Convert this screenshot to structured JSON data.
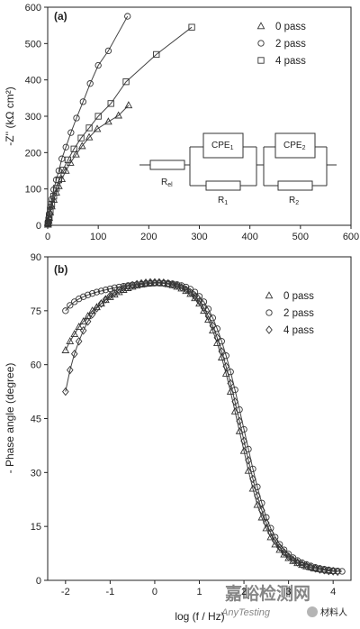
{
  "chart_data": [
    {
      "panel_label": "(a)",
      "type": "scatter",
      "xlabel": "",
      "ylabel": "-Z'' (kΩ cm²)",
      "xlim": [
        0,
        600
      ],
      "ylim": [
        0,
        600
      ],
      "x_ticks": [
        "0",
        "100",
        "200",
        "300",
        "400",
        "500",
        "600"
      ],
      "y_ticks": [
        "0",
        "100",
        "200",
        "300",
        "400",
        "500",
        "600"
      ],
      "legend_position": "top-right",
      "grid": false,
      "fitted_lines": true,
      "series": [
        {
          "name": "0 pass",
          "marker": "triangle",
          "points": [
            [
              0.5,
              2
            ],
            [
              1,
              5
            ],
            [
              2,
              12
            ],
            [
              3,
              20
            ],
            [
              5,
              35
            ],
            [
              8,
              52
            ],
            [
              12,
              70
            ],
            [
              17,
              90
            ],
            [
              22,
              108
            ],
            [
              28,
              127
            ],
            [
              36,
              150
            ],
            [
              45,
              172
            ],
            [
              56,
              195
            ],
            [
              68,
              218
            ],
            [
              82,
              242
            ],
            [
              98,
              265
            ],
            [
              120,
              285
            ],
            [
              140,
              302
            ],
            [
              160,
              330
            ]
          ]
        },
        {
          "name": "2 pass",
          "marker": "circle",
          "points": [
            [
              0.5,
              4
            ],
            [
              1,
              10
            ],
            [
              2,
              20
            ],
            [
              3,
              32
            ],
            [
              5,
              50
            ],
            [
              8,
              72
            ],
            [
              12,
              98
            ],
            [
              17,
              125
            ],
            [
              22,
              150
            ],
            [
              28,
              183
            ],
            [
              36,
              215
            ],
            [
              46,
              255
            ],
            [
              57,
              295
            ],
            [
              70,
              340
            ],
            [
              84,
              390
            ],
            [
              100,
              440
            ],
            [
              120,
              480
            ],
            [
              158,
              575
            ]
          ]
        },
        {
          "name": "4 pass",
          "marker": "square",
          "points": [
            [
              0.5,
              3
            ],
            [
              1,
              6
            ],
            [
              2,
              14
            ],
            [
              3,
              24
            ],
            [
              5,
              40
            ],
            [
              8,
              58
            ],
            [
              12,
              80
            ],
            [
              17,
              102
            ],
            [
              22,
              125
            ],
            [
              30,
              152
            ],
            [
              40,
              180
            ],
            [
              52,
              210
            ],
            [
              66,
              240
            ],
            [
              82,
              268
            ],
            [
              100,
              300
            ],
            [
              125,
              335
            ],
            [
              155,
              395
            ],
            [
              215,
              470
            ],
            [
              285,
              545
            ]
          ]
        }
      ],
      "circuit_labels": [
        "R",
        "el",
        "CPE",
        "1",
        "R",
        "1",
        "CPE",
        "2",
        "R",
        "2"
      ]
    },
    {
      "panel_label": "(b)",
      "type": "scatter",
      "xlabel": "log (f / Hz)",
      "ylabel": "- Phase angle (degree)",
      "xlim": [
        -2.4,
        4.4
      ],
      "ylim": [
        0,
        90
      ],
      "x_ticks": [
        "-2",
        "-1",
        "0",
        "1",
        "2",
        "3",
        "4"
      ],
      "y_ticks": [
        "0",
        "15",
        "30",
        "45",
        "60",
        "75",
        "90"
      ],
      "legend_position": "top-right",
      "grid": false,
      "fitted_lines": true,
      "series": [
        {
          "name": "0 pass",
          "marker": "triangle",
          "points": [
            [
              -2,
              64
            ],
            [
              -1.9,
              66.5
            ],
            [
              -1.8,
              68.5
            ],
            [
              -1.7,
              70.5
            ],
            [
              -1.6,
              72
            ],
            [
              -1.5,
              73.5
            ],
            [
              -1.4,
              75
            ],
            [
              -1.3,
              76
            ],
            [
              -1.2,
              77
            ],
            [
              -1.1,
              78
            ],
            [
              -1,
              78.8
            ],
            [
              -0.9,
              79.5
            ],
            [
              -0.8,
              80.2
            ],
            [
              -0.7,
              80.8
            ],
            [
              -0.6,
              81.3
            ],
            [
              -0.5,
              81.7
            ],
            [
              -0.4,
              82
            ],
            [
              -0.3,
              82.3
            ],
            [
              -0.2,
              82.5
            ],
            [
              -0.1,
              82.6
            ],
            [
              0,
              82.7
            ],
            [
              0.1,
              82.7
            ],
            [
              0.2,
              82.6
            ],
            [
              0.3,
              82.4
            ],
            [
              0.4,
              82.1
            ],
            [
              0.5,
              81.7
            ],
            [
              0.6,
              81.2
            ],
            [
              0.7,
              80.5
            ],
            [
              0.8,
              79.7
            ],
            [
              0.9,
              78.5
            ],
            [
              1,
              77
            ],
            [
              1.1,
              75
            ],
            [
              1.2,
              72.5
            ],
            [
              1.3,
              69.5
            ],
            [
              1.4,
              66
            ],
            [
              1.5,
              62
            ],
            [
              1.6,
              57.5
            ],
            [
              1.7,
              52.5
            ],
            [
              1.8,
              47
            ],
            [
              1.9,
              41.5
            ],
            [
              2,
              36
            ],
            [
              2.1,
              30.5
            ],
            [
              2.2,
              25.5
            ],
            [
              2.3,
              21
            ],
            [
              2.4,
              17.5
            ],
            [
              2.5,
              14.5
            ],
            [
              2.6,
              12
            ],
            [
              2.7,
              10
            ],
            [
              2.8,
              8.5
            ],
            [
              2.9,
              7.2
            ],
            [
              3,
              6.2
            ],
            [
              3.1,
              5.4
            ],
            [
              3.2,
              4.8
            ],
            [
              3.3,
              4.3
            ],
            [
              3.4,
              3.9
            ],
            [
              3.5,
              3.6
            ],
            [
              3.6,
              3.3
            ],
            [
              3.7,
              3.1
            ],
            [
              3.8,
              2.9
            ],
            [
              3.9,
              2.7
            ],
            [
              4,
              2.6
            ]
          ]
        },
        {
          "name": "2 pass",
          "marker": "circle",
          "points": [
            [
              -2,
              75
            ],
            [
              -1.9,
              76.5
            ],
            [
              -1.8,
              77.5
            ],
            [
              -1.7,
              78.3
            ],
            [
              -1.6,
              78.9
            ],
            [
              -1.5,
              79.4
            ],
            [
              -1.4,
              79.8
            ],
            [
              -1.3,
              80.2
            ],
            [
              -1.2,
              80.5
            ],
            [
              -1.1,
              80.8
            ],
            [
              -1,
              81.1
            ],
            [
              -0.9,
              81.4
            ],
            [
              -0.8,
              81.6
            ],
            [
              -0.7,
              81.8
            ],
            [
              -0.6,
              82
            ],
            [
              -0.5,
              82.2
            ],
            [
              -0.4,
              82.3
            ],
            [
              -0.3,
              82.4
            ],
            [
              -0.2,
              82.5
            ],
            [
              -0.1,
              82.6
            ],
            [
              0,
              82.7
            ],
            [
              0.1,
              82.7
            ],
            [
              0.2,
              82.7
            ],
            [
              0.3,
              82.6
            ],
            [
              0.4,
              82.5
            ],
            [
              0.5,
              82.3
            ],
            [
              0.6,
              82
            ],
            [
              0.7,
              81.6
            ],
            [
              0.8,
              81
            ],
            [
              0.9,
              80.2
            ],
            [
              1,
              79
            ],
            [
              1.1,
              77.5
            ],
            [
              1.2,
              75.5
            ],
            [
              1.3,
              73
            ],
            [
              1.4,
              70
            ],
            [
              1.5,
              66.5
            ],
            [
              1.6,
              62.5
            ],
            [
              1.7,
              58
            ],
            [
              1.8,
              53
            ],
            [
              1.9,
              47.5
            ],
            [
              2,
              42
            ],
            [
              2.1,
              36.5
            ],
            [
              2.2,
              31
            ],
            [
              2.3,
              26
            ],
            [
              2.4,
              21.5
            ],
            [
              2.5,
              17.5
            ],
            [
              2.6,
              14.5
            ],
            [
              2.7,
              12
            ],
            [
              2.8,
              10
            ],
            [
              2.9,
              8.5
            ],
            [
              3,
              7.3
            ],
            [
              3.1,
              6.3
            ],
            [
              3.2,
              5.5
            ],
            [
              3.3,
              4.9
            ],
            [
              3.4,
              4.4
            ],
            [
              3.5,
              4
            ],
            [
              3.6,
              3.6
            ],
            [
              3.7,
              3.3
            ],
            [
              3.8,
              3.1
            ],
            [
              3.9,
              2.9
            ],
            [
              4,
              2.7
            ],
            [
              4.1,
              2.6
            ],
            [
              4.2,
              2.5
            ]
          ]
        },
        {
          "name": "4 pass",
          "marker": "diamond",
          "points": [
            [
              -2,
              52.5
            ],
            [
              -1.9,
              58.5
            ],
            [
              -1.8,
              63
            ],
            [
              -1.7,
              66.5
            ],
            [
              -1.6,
              69.5
            ],
            [
              -1.5,
              72
            ],
            [
              -1.4,
              74
            ],
            [
              -1.3,
              75.7
            ],
            [
              -1.2,
              77
            ],
            [
              -1.1,
              78.2
            ],
            [
              -1,
              79.2
            ],
            [
              -0.9,
              80
            ],
            [
              -0.8,
              80.7
            ],
            [
              -0.7,
              81.3
            ],
            [
              -0.6,
              81.8
            ],
            [
              -0.5,
              82.1
            ],
            [
              -0.4,
              82.4
            ],
            [
              -0.3,
              82.6
            ],
            [
              -0.2,
              82.8
            ],
            [
              -0.1,
              82.9
            ],
            [
              0,
              82.9
            ],
            [
              0.1,
              82.9
            ],
            [
              0.2,
              82.8
            ],
            [
              0.3,
              82.6
            ],
            [
              0.4,
              82.3
            ],
            [
              0.5,
              82
            ],
            [
              0.6,
              81.5
            ],
            [
              0.7,
              80.9
            ],
            [
              0.8,
              80.1
            ],
            [
              0.9,
              79
            ],
            [
              1,
              77.6
            ],
            [
              1.1,
              75.8
            ],
            [
              1.2,
              73.5
            ],
            [
              1.3,
              70.8
            ],
            [
              1.4,
              67.5
            ],
            [
              1.5,
              63.7
            ],
            [
              1.6,
              59.5
            ],
            [
              1.7,
              54.8
            ],
            [
              1.8,
              49.7
            ],
            [
              1.9,
              44.3
            ],
            [
              2,
              38.8
            ],
            [
              2.1,
              33.4
            ],
            [
              2.2,
              28.2
            ],
            [
              2.3,
              23.5
            ],
            [
              2.4,
              19.5
            ],
            [
              2.5,
              16
            ],
            [
              2.6,
              13.2
            ],
            [
              2.7,
              11
            ],
            [
              2.8,
              9.2
            ],
            [
              2.9,
              7.8
            ],
            [
              3,
              6.6
            ],
            [
              3.1,
              5.7
            ],
            [
              3.2,
              5
            ],
            [
              3.3,
              4.4
            ],
            [
              3.4,
              4
            ],
            [
              3.5,
              3.6
            ],
            [
              3.6,
              3.3
            ],
            [
              3.7,
              3
            ],
            [
              3.8,
              2.8
            ],
            [
              3.9,
              2.6
            ],
            [
              4,
              2.5
            ],
            [
              4.1,
              2.4
            ]
          ]
        }
      ]
    }
  ],
  "watermark": {
    "main": "嘉峪检测网",
    "sub": "AnyTesting",
    "badge": "材料人"
  }
}
